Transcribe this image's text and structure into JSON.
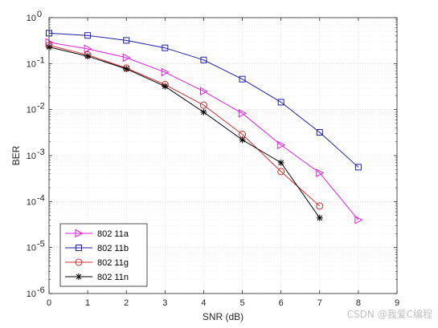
{
  "chart_data": {
    "type": "line",
    "title": "",
    "xlabel": "SNR (dB)",
    "ylabel": "BER",
    "xlim": [
      0,
      9
    ],
    "ylim": [
      1e-06,
      1
    ],
    "yscale": "log",
    "grid": true,
    "minor_grid": true,
    "x_ticks": [
      "0",
      "1",
      "2",
      "3",
      "4",
      "5",
      "6",
      "7",
      "8",
      "9"
    ],
    "y_ticks": [
      {
        "base": "10",
        "exp": "0"
      },
      {
        "base": "10",
        "exp": "-1"
      },
      {
        "base": "10",
        "exp": "-2"
      },
      {
        "base": "10",
        "exp": "-3"
      },
      {
        "base": "10",
        "exp": "-4"
      },
      {
        "base": "10",
        "exp": "-5"
      },
      {
        "base": "10",
        "exp": "-6"
      }
    ],
    "legend_position": "bottom-left",
    "series": [
      {
        "name": "802 11a",
        "color": "#e020e0",
        "marker": "triangle-right",
        "x": [
          0,
          1,
          2,
          3,
          4,
          5,
          6,
          7,
          8
        ],
        "y": [
          0.29,
          0.21,
          0.135,
          0.065,
          0.025,
          0.0083,
          0.0017,
          0.00042,
          4e-05
        ]
      },
      {
        "name": "802 11b",
        "color": "#1f1fa8",
        "marker": "square",
        "x": [
          0,
          1,
          2,
          3,
          4,
          5,
          6,
          7,
          8
        ],
        "y": [
          0.46,
          0.41,
          0.32,
          0.22,
          0.12,
          0.046,
          0.0145,
          0.0032,
          0.00056
        ]
      },
      {
        "name": "802 11g",
        "color": "#d03030",
        "marker": "circle",
        "x": [
          0,
          1,
          2,
          3,
          4,
          5,
          6,
          7
        ],
        "y": [
          0.25,
          0.155,
          0.08,
          0.035,
          0.0125,
          0.0029,
          0.00045,
          8e-05
        ]
      },
      {
        "name": "802 11n",
        "color": "#000000",
        "marker": "asterisk",
        "x": [
          0,
          1,
          2,
          3,
          4,
          5,
          6,
          7
        ],
        "y": [
          0.23,
          0.145,
          0.077,
          0.032,
          0.0088,
          0.0022,
          0.0007,
          4.4e-05
        ]
      }
    ]
  },
  "watermark": "CSDN @我爱C编程"
}
